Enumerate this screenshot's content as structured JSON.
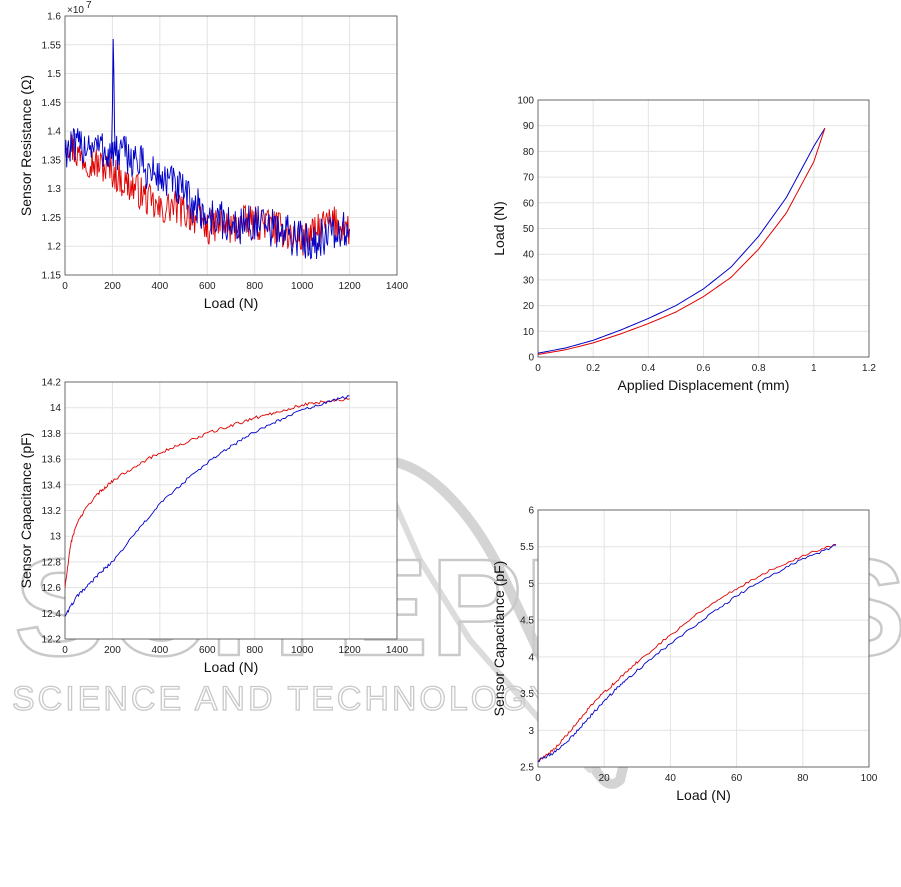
{
  "watermark": {
    "main": "SCITEPRESS",
    "sub": "SCIENCE AND TECHNOLOGY PUBLICATIONS"
  },
  "colors": {
    "series_a": "#e00000",
    "series_b": "#0000c8",
    "grid": "#e3e3e3",
    "axes": "#444444"
  },
  "chart_data": [
    {
      "id": "resistance",
      "type": "line",
      "xlabel": "Load (N)",
      "ylabel": "Sensor Resistance (Ω)",
      "multiplier": "×10",
      "multiplier_exp": "7",
      "xlim": [
        0,
        1400
      ],
      "ylim": [
        1.15,
        1.6
      ],
      "xticks": [
        "0",
        "200",
        "400",
        "600",
        "800",
        "1000",
        "1200",
        "1400"
      ],
      "yticks": [
        "1.15",
        "1.2",
        "1.25",
        "1.3",
        "1.35",
        "1.4",
        "1.45",
        "1.5",
        "1.55",
        "1.6"
      ],
      "grid": true,
      "series": [
        {
          "color": "#e00000",
          "x": [
            0,
            50,
            100,
            150,
            200,
            250,
            300,
            350,
            400,
            450,
            500,
            550,
            600,
            650,
            700,
            750,
            800,
            850,
            900,
            950,
            1000,
            1050,
            1100,
            1150,
            1200
          ],
          "y": [
            1.39,
            1.36,
            1.35,
            1.34,
            1.33,
            1.31,
            1.3,
            1.28,
            1.26,
            1.27,
            1.26,
            1.25,
            1.23,
            1.24,
            1.23,
            1.24,
            1.24,
            1.24,
            1.23,
            1.22,
            1.21,
            1.22,
            1.24,
            1.24,
            1.23
          ],
          "noise": 0.03
        },
        {
          "color": "#0000c8",
          "x": [
            0,
            50,
            100,
            150,
            200,
            250,
            300,
            350,
            400,
            450,
            500,
            550,
            600,
            650,
            700,
            750,
            800,
            850,
            900,
            950,
            1000,
            1050,
            1100,
            1150,
            1200
          ],
          "y": [
            1.37,
            1.37,
            1.38,
            1.37,
            1.36,
            1.36,
            1.35,
            1.33,
            1.32,
            1.31,
            1.29,
            1.27,
            1.25,
            1.25,
            1.23,
            1.24,
            1.24,
            1.23,
            1.23,
            1.22,
            1.21,
            1.21,
            1.22,
            1.22,
            1.23
          ],
          "noise": 0.035
        }
      ]
    },
    {
      "id": "load-displacement",
      "type": "line",
      "xlabel": "Applied Displacement (mm)",
      "ylabel": "Load (N)",
      "xlim": [
        0,
        1.2
      ],
      "ylim": [
        0,
        100
      ],
      "xticks": [
        "0",
        "0.2",
        "0.4",
        "0.6",
        "0.8",
        "1",
        "1.2"
      ],
      "yticks": [
        "0",
        "10",
        "20",
        "30",
        "40",
        "50",
        "60",
        "70",
        "80",
        "90",
        "100"
      ],
      "grid": true,
      "series": [
        {
          "color": "#0000c8",
          "x": [
            0,
            0.1,
            0.2,
            0.3,
            0.4,
            0.5,
            0.6,
            0.7,
            0.8,
            0.9,
            1.0,
            1.04
          ],
          "y": [
            1.5,
            3.5,
            6.5,
            10.5,
            15,
            20,
            26.5,
            35,
            47,
            62,
            82,
            89
          ],
          "noise": 0
        },
        {
          "color": "#e00000",
          "x": [
            0,
            0.1,
            0.2,
            0.3,
            0.4,
            0.5,
            0.6,
            0.7,
            0.8,
            0.9,
            1.0,
            1.04
          ],
          "y": [
            1,
            2.8,
            5.5,
            9,
            13,
            17.5,
            23.5,
            31,
            42,
            56,
            76,
            89
          ],
          "noise": 0
        }
      ]
    },
    {
      "id": "capacitance-large",
      "type": "line",
      "xlabel": "Load (N)",
      "ylabel": "Sensor Capacitance (pF)",
      "xlim": [
        0,
        1400
      ],
      "ylim": [
        12.2,
        14.2
      ],
      "xticks": [
        "0",
        "200",
        "400",
        "600",
        "800",
        "1000",
        "1200",
        "1400"
      ],
      "yticks": [
        "12.2",
        "12.4",
        "12.6",
        "12.8",
        "13",
        "13.2",
        "13.4",
        "13.6",
        "13.8",
        "14",
        "14.2"
      ],
      "grid": true,
      "series": [
        {
          "color": "#e00000",
          "x": [
            0,
            25,
            50,
            100,
            150,
            200,
            300,
            400,
            500,
            600,
            700,
            800,
            900,
            1000,
            1100,
            1200
          ],
          "y": [
            12.6,
            12.95,
            13.1,
            13.25,
            13.35,
            13.43,
            13.55,
            13.65,
            13.72,
            13.8,
            13.86,
            13.92,
            13.97,
            14.02,
            14.05,
            14.07
          ],
          "noise": 0.012
        },
        {
          "color": "#0000c8",
          "x": [
            0,
            50,
            100,
            150,
            200,
            300,
            400,
            500,
            600,
            700,
            800,
            900,
            1000,
            1100,
            1200
          ],
          "y": [
            12.38,
            12.53,
            12.62,
            12.72,
            12.8,
            13.03,
            13.25,
            13.42,
            13.57,
            13.7,
            13.81,
            13.9,
            13.98,
            14.04,
            14.09
          ],
          "noise": 0.012
        }
      ]
    },
    {
      "id": "capacitance-small",
      "type": "line",
      "xlabel": "Load (N)",
      "ylabel": "Sensor Capacitance (pF)",
      "xlim": [
        0,
        100
      ],
      "ylim": [
        2.5,
        6
      ],
      "xticks": [
        "0",
        "20",
        "40",
        "60",
        "80",
        "100"
      ],
      "yticks": [
        "2.5",
        "3",
        "3.5",
        "4",
        "4.5",
        "5",
        "5.5",
        "6"
      ],
      "grid": true,
      "series": [
        {
          "color": "#e00000",
          "x": [
            0,
            5,
            10,
            15,
            20,
            25,
            30,
            40,
            50,
            60,
            70,
            80,
            90
          ],
          "y": [
            2.58,
            2.75,
            3.0,
            3.28,
            3.52,
            3.72,
            3.93,
            4.3,
            4.65,
            4.93,
            5.18,
            5.38,
            5.53
          ],
          "noise": 0.02
        },
        {
          "color": "#0000c8",
          "x": [
            0,
            5,
            10,
            15,
            20,
            25,
            30,
            40,
            50,
            60,
            70,
            80,
            90
          ],
          "y": [
            2.58,
            2.7,
            2.9,
            3.15,
            3.4,
            3.62,
            3.82,
            4.18,
            4.52,
            4.83,
            5.1,
            5.33,
            5.52
          ],
          "noise": 0.02
        }
      ]
    }
  ]
}
